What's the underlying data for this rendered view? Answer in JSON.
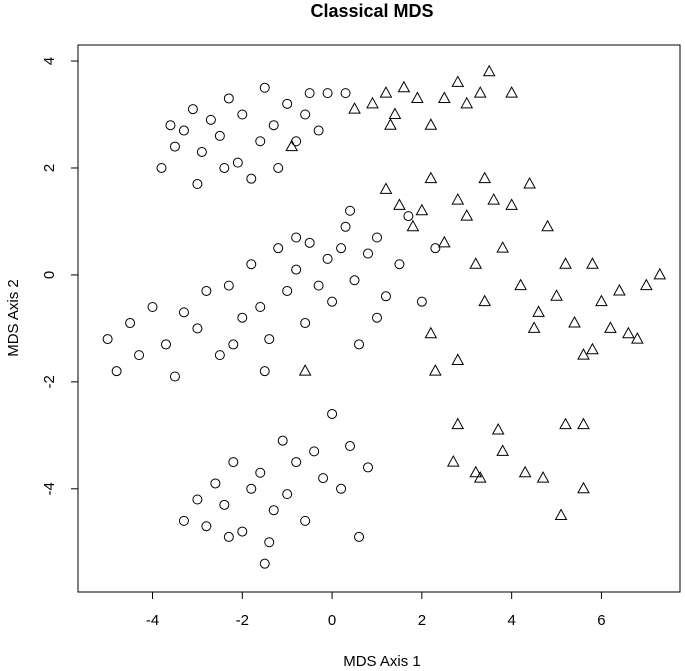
{
  "chart_data": {
    "type": "scatter",
    "title": "Classical MDS",
    "x_label": "MDS Axis 1",
    "y_label": "MDS Axis 2",
    "xlim": [
      -5.66,
      7.75
    ],
    "ylim": [
      -5.93,
      4.3
    ],
    "xticks": [
      -4,
      -2,
      0,
      2,
      4,
      6
    ],
    "yticks": [
      -4,
      -2,
      0,
      2,
      4
    ],
    "series": [
      {
        "marker": "circle",
        "color": "#000000",
        "x": [
          -3.8,
          -3.5,
          -3.3,
          -3.1,
          -2.9,
          -2.7,
          -2.5,
          -2.3,
          -2.1,
          -2.0,
          -1.8,
          -1.6,
          -1.5,
          -1.3,
          -1.0,
          -0.8,
          -0.6,
          -0.3,
          -0.1,
          -3.0,
          -2.4,
          -1.2,
          -0.5,
          0.3,
          -3.6,
          -5.0,
          -4.8,
          -4.5,
          -4.3,
          -4.0,
          -3.7,
          -3.5,
          -3.3,
          -3.0,
          -2.8,
          -2.5,
          -2.3,
          -2.0,
          -1.8,
          -1.6,
          -1.4,
          -1.2,
          -1.0,
          -0.8,
          -0.6,
          -0.5,
          -0.3,
          -0.1,
          0.0,
          0.2,
          0.3,
          0.5,
          0.6,
          0.8,
          1.0,
          1.2,
          1.5,
          1.7,
          2.0,
          2.3,
          -1.5,
          0.4,
          1.0,
          -2.2,
          -0.8,
          -3.3,
          -3.0,
          -2.8,
          -2.6,
          -2.4,
          -2.2,
          -2.0,
          -1.8,
          -1.6,
          -1.5,
          -1.3,
          -1.1,
          -1.0,
          -0.8,
          -0.6,
          -0.4,
          -0.2,
          0.0,
          0.2,
          0.4,
          0.6,
          0.8,
          -1.4,
          -2.3
        ],
        "values": [
          2.0,
          2.4,
          2.7,
          3.1,
          2.3,
          2.9,
          2.6,
          3.3,
          2.1,
          3.0,
          1.8,
          2.5,
          3.5,
          2.8,
          3.2,
          2.5,
          3.0,
          2.7,
          3.4,
          1.7,
          2.0,
          2.0,
          3.4,
          3.4,
          2.8,
          -1.2,
          -1.8,
          -0.9,
          -1.5,
          -0.6,
          -1.3,
          -1.9,
          -0.7,
          -1.0,
          -0.3,
          -1.5,
          -0.2,
          -0.8,
          0.2,
          -0.6,
          -1.2,
          0.5,
          -0.3,
          0.1,
          -0.9,
          0.6,
          -0.2,
          0.3,
          -0.5,
          0.5,
          0.9,
          -0.1,
          -1.3,
          0.4,
          0.7,
          -0.4,
          0.2,
          1.1,
          -0.5,
          0.5,
          -1.8,
          1.2,
          -0.8,
          -1.3,
          0.7,
          -4.6,
          -4.2,
          -4.7,
          -3.9,
          -4.3,
          -3.5,
          -4.8,
          -4.0,
          -3.7,
          -5.4,
          -4.4,
          -3.1,
          -4.1,
          -3.5,
          -4.6,
          -3.3,
          -3.8,
          -2.6,
          -4.0,
          -3.2,
          -4.9,
          -3.6,
          -5.0,
          -4.9
        ]
      },
      {
        "marker": "triangle",
        "color": "#000000",
        "x": [
          0.5,
          0.9,
          1.2,
          1.4,
          1.6,
          1.9,
          2.2,
          2.5,
          2.8,
          3.0,
          3.3,
          3.5,
          4.0,
          1.3,
          -0.9,
          1.2,
          1.5,
          1.8,
          2.0,
          2.2,
          2.5,
          2.8,
          3.0,
          3.2,
          3.4,
          3.6,
          3.8,
          4.0,
          4.2,
          4.4,
          4.6,
          4.8,
          5.0,
          5.2,
          5.4,
          5.6,
          5.8,
          6.0,
          6.2,
          6.4,
          6.6,
          6.8,
          7.0,
          7.3,
          2.3,
          2.8,
          3.4,
          4.5,
          5.8,
          -0.6,
          2.2,
          2.8,
          3.7,
          3.8,
          2.7,
          3.2,
          4.3,
          4.7,
          5.2,
          5.6,
          5.1,
          5.6,
          3.3
        ],
        "values": [
          3.1,
          3.2,
          3.4,
          3.0,
          3.5,
          3.3,
          2.8,
          3.3,
          3.6,
          3.2,
          3.4,
          3.8,
          3.4,
          2.8,
          2.4,
          1.6,
          1.3,
          0.9,
          1.2,
          1.8,
          0.6,
          1.4,
          1.1,
          0.2,
          1.8,
          1.4,
          0.5,
          1.3,
          -0.2,
          1.7,
          -0.7,
          0.9,
          -0.4,
          0.2,
          -0.9,
          -1.5,
          0.2,
          -0.5,
          -1.0,
          -0.3,
          -1.1,
          -1.2,
          -0.2,
          0.0,
          -1.8,
          -1.6,
          -0.5,
          -1.0,
          -1.4,
          -1.8,
          -1.1,
          -2.8,
          -2.9,
          -3.3,
          -3.5,
          -3.7,
          -3.7,
          -3.8,
          -2.8,
          -2.8,
          -4.5,
          -4.0,
          -3.8
        ]
      }
    ]
  }
}
